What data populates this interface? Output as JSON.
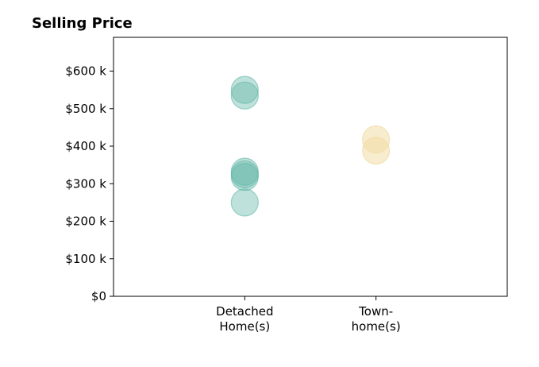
{
  "chart_data": {
    "type": "scatter",
    "title": "Selling Price",
    "xlabel": "",
    "ylabel": "",
    "categories": [
      [
        "Detached",
        "Home(s)"
      ],
      [
        "Town-",
        "home(s)"
      ]
    ],
    "xlim": [
      -1,
      2
    ],
    "ylim": [
      0,
      690000
    ],
    "y_ticks": [
      0,
      100000,
      200000,
      300000,
      400000,
      500000,
      600000
    ],
    "y_tick_labels": [
      "$0",
      "$100 k",
      "$200 k",
      "$300 k",
      "$400 k",
      "$500 k",
      "$600 k"
    ],
    "grid": false,
    "legend": "none",
    "series": [
      {
        "category_index": 0,
        "color": "#66b8a9",
        "opacity": 0.42,
        "values": [
          550000,
          535000,
          332000,
          325000,
          318000,
          250000
        ]
      },
      {
        "category_index": 1,
        "color": "#f2dca6",
        "opacity": 0.55,
        "values": [
          418000,
          388000
        ]
      }
    ]
  }
}
